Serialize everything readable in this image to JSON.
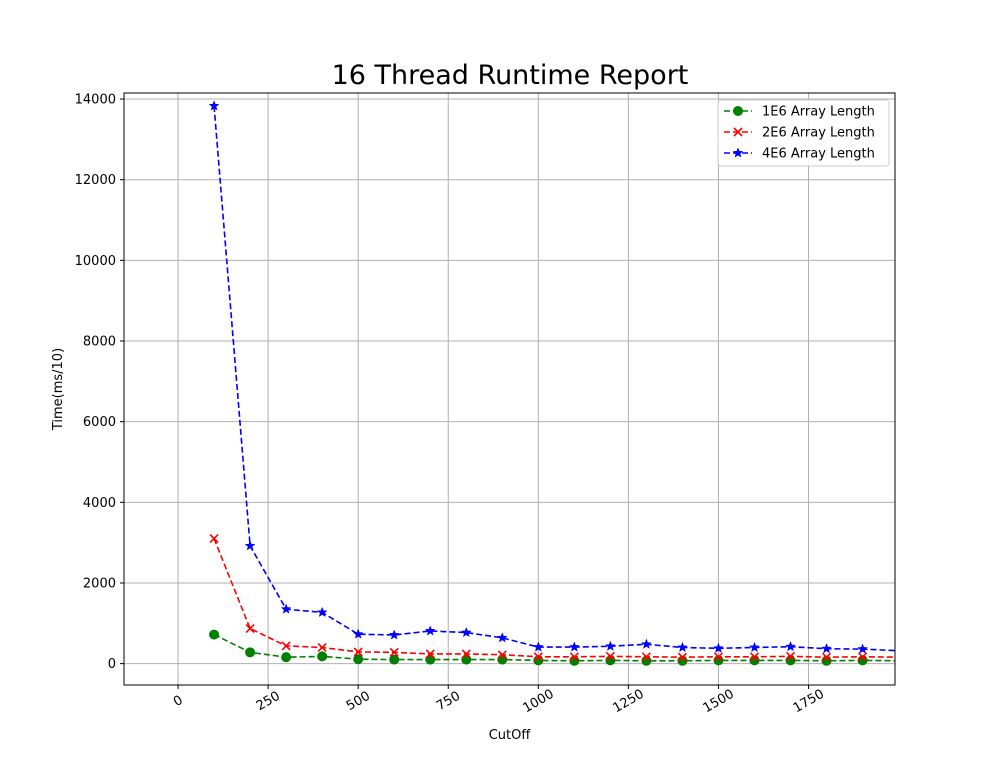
{
  "chart_data": {
    "type": "line",
    "title": "16 Thread Runtime Report",
    "xlabel": "CutOff",
    "ylabel": "Time(ms/10)",
    "xlim": [
      -150,
      1990
    ],
    "ylim": [
      -530,
      14150
    ],
    "xticks": [
      0,
      250,
      500,
      750,
      1000,
      1250,
      1500,
      1750
    ],
    "yticks": [
      0,
      2000,
      4000,
      6000,
      8000,
      10000,
      12000,
      14000
    ],
    "grid": true,
    "legend_position": "top-right",
    "x": [
      100,
      200,
      300,
      400,
      500,
      600,
      700,
      800,
      900,
      1000,
      1100,
      1200,
      1300,
      1400,
      1500,
      1600,
      1700,
      1800,
      1900,
      2000
    ],
    "series": [
      {
        "name": "1E6 Array Length",
        "color": "#008000",
        "marker": "circle",
        "values": [
          720,
          280,
          160,
          180,
          110,
          100,
          100,
          100,
          100,
          80,
          70,
          80,
          70,
          70,
          80,
          80,
          80,
          70,
          80,
          70
        ]
      },
      {
        "name": "2E6 Array Length",
        "color": "#ff0000",
        "marker": "x",
        "values": [
          3100,
          870,
          440,
          400,
          290,
          280,
          240,
          240,
          220,
          170,
          170,
          180,
          170,
          160,
          170,
          170,
          180,
          160,
          170,
          160
        ]
      },
      {
        "name": "4E6 Array Length",
        "color": "#0000ff",
        "marker": "star",
        "values": [
          13830,
          2920,
          1350,
          1270,
          730,
          710,
          810,
          770,
          640,
          410,
          410,
          430,
          480,
          400,
          380,
          400,
          420,
          370,
          360,
          320
        ]
      }
    ]
  }
}
